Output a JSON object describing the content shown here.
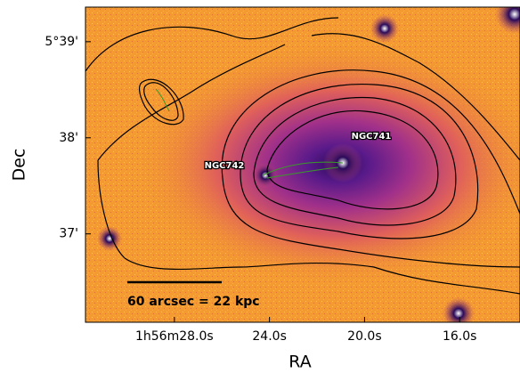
{
  "chart_data": {
    "type": "image",
    "xlabel": "RA",
    "ylabel": "Dec",
    "xlim": [
      31.74,
      13.46
    ],
    "xticks": [
      {
        "value": 28.0,
        "label": "1h56m28.0s"
      },
      {
        "value": 24.0,
        "label": "24.0s"
      },
      {
        "value": 20.0,
        "label": "20.0s"
      },
      {
        "value": 16.0,
        "label": "16.0s"
      }
    ],
    "ylim": [
      36.08,
      39.36
    ],
    "yticks": [
      {
        "value": 39,
        "label": "5°39'"
      },
      {
        "value": 38,
        "label": "38'"
      },
      {
        "value": 37,
        "label": "37'"
      }
    ],
    "annotations": [
      "NGC742",
      "NGC741"
    ],
    "scale_bar": "60 arcsec = 22 kpc"
  }
}
